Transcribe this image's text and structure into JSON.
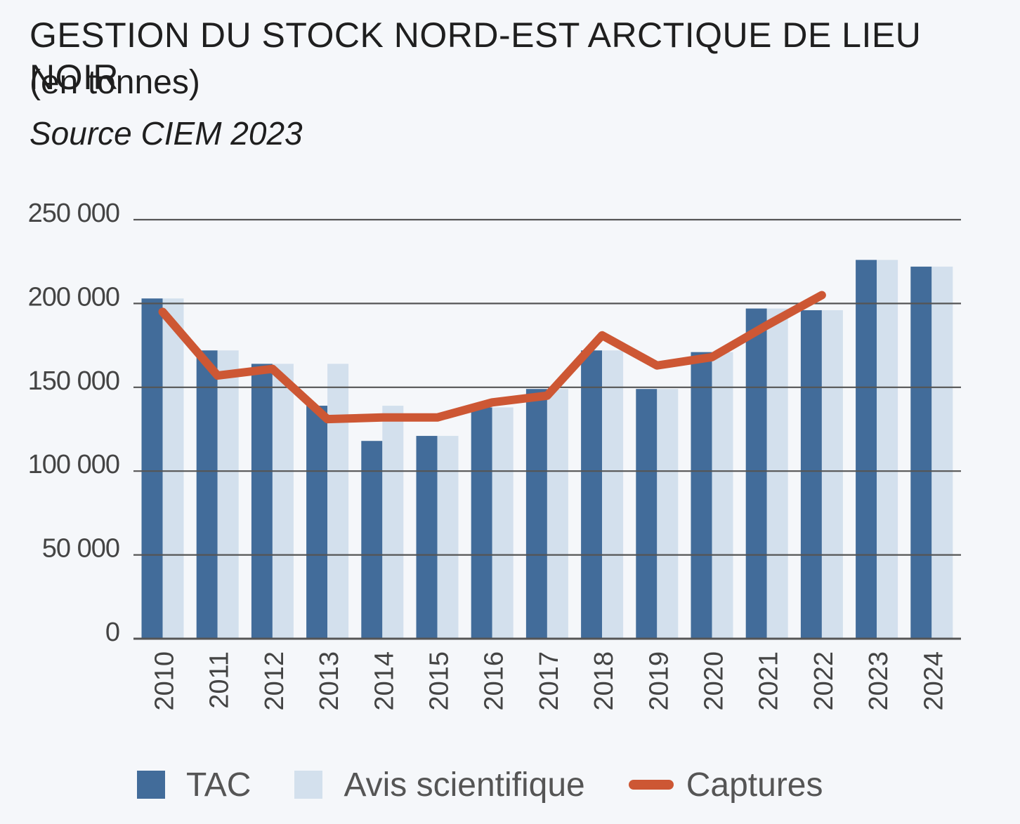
{
  "header": {
    "title": "GESTION DU STOCK NORD-EST ARCTIQUE DE LIEU NOIR",
    "subtitle": "(en tonnes)",
    "source": "Source CIEM 2023"
  },
  "colors": {
    "tac": "#426c9a",
    "avis": "#d3e0ed",
    "captures": "#cd5734",
    "grid": "#555555",
    "axis_text": "#444444"
  },
  "chart_data": {
    "type": "bar",
    "categories": [
      "2010",
      "2011",
      "2012",
      "2013",
      "2014",
      "2015",
      "2016",
      "2017",
      "2018",
      "2019",
      "2020",
      "2021",
      "2022",
      "2023",
      "2024"
    ],
    "series": [
      {
        "name": "TAC",
        "type": "bar",
        "values": [
          203000,
          172000,
          164000,
          139000,
          118000,
          121000,
          138000,
          149000,
          172000,
          149000,
          171000,
          197000,
          196000,
          226000,
          222000
        ]
      },
      {
        "name": "Avis scientifique",
        "type": "bar",
        "values": [
          203000,
          172000,
          164000,
          164000,
          139000,
          121000,
          138000,
          149000,
          172000,
          149000,
          171000,
          197000,
          196000,
          226000,
          222000
        ]
      },
      {
        "name": "Captures",
        "type": "line",
        "values": [
          195000,
          157000,
          161000,
          131000,
          132000,
          132000,
          141000,
          145000,
          181000,
          163000,
          168000,
          187000,
          205000,
          null,
          null
        ]
      }
    ],
    "ylim": [
      0,
      250000
    ],
    "yticks": [
      0,
      50000,
      100000,
      150000,
      200000,
      250000
    ],
    "ytick_labels": [
      "0",
      "50 000",
      "100 000",
      "150 000",
      "200 000",
      "250 000"
    ],
    "xlabel": "",
    "ylabel": "",
    "grid": true,
    "legend_position": "bottom"
  }
}
